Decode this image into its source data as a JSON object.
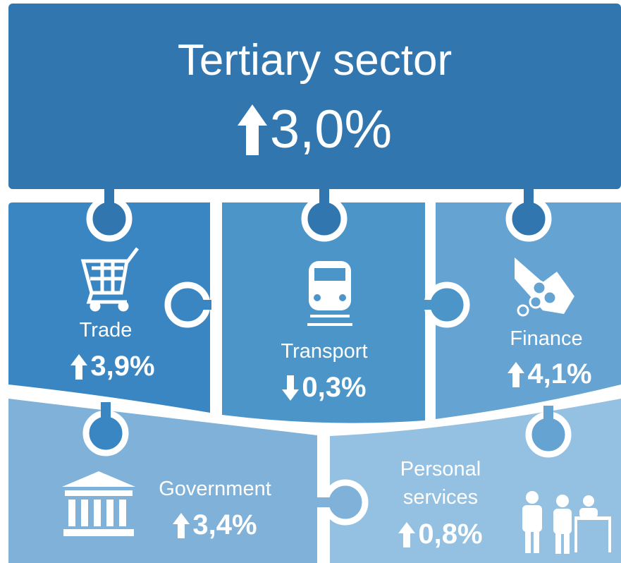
{
  "header": {
    "title": "Tertiary sector",
    "value": "3,0%"
  },
  "sectors": [
    {
      "label": "Trade",
      "value": "3,9%"
    },
    {
      "label": "Transport",
      "value": "0,3%"
    },
    {
      "label": "Finance",
      "value": "4,1%"
    },
    {
      "label": "Government",
      "value": "3,4%"
    },
    {
      "label": "Personal services",
      "value": "0,8%"
    }
  ]
}
